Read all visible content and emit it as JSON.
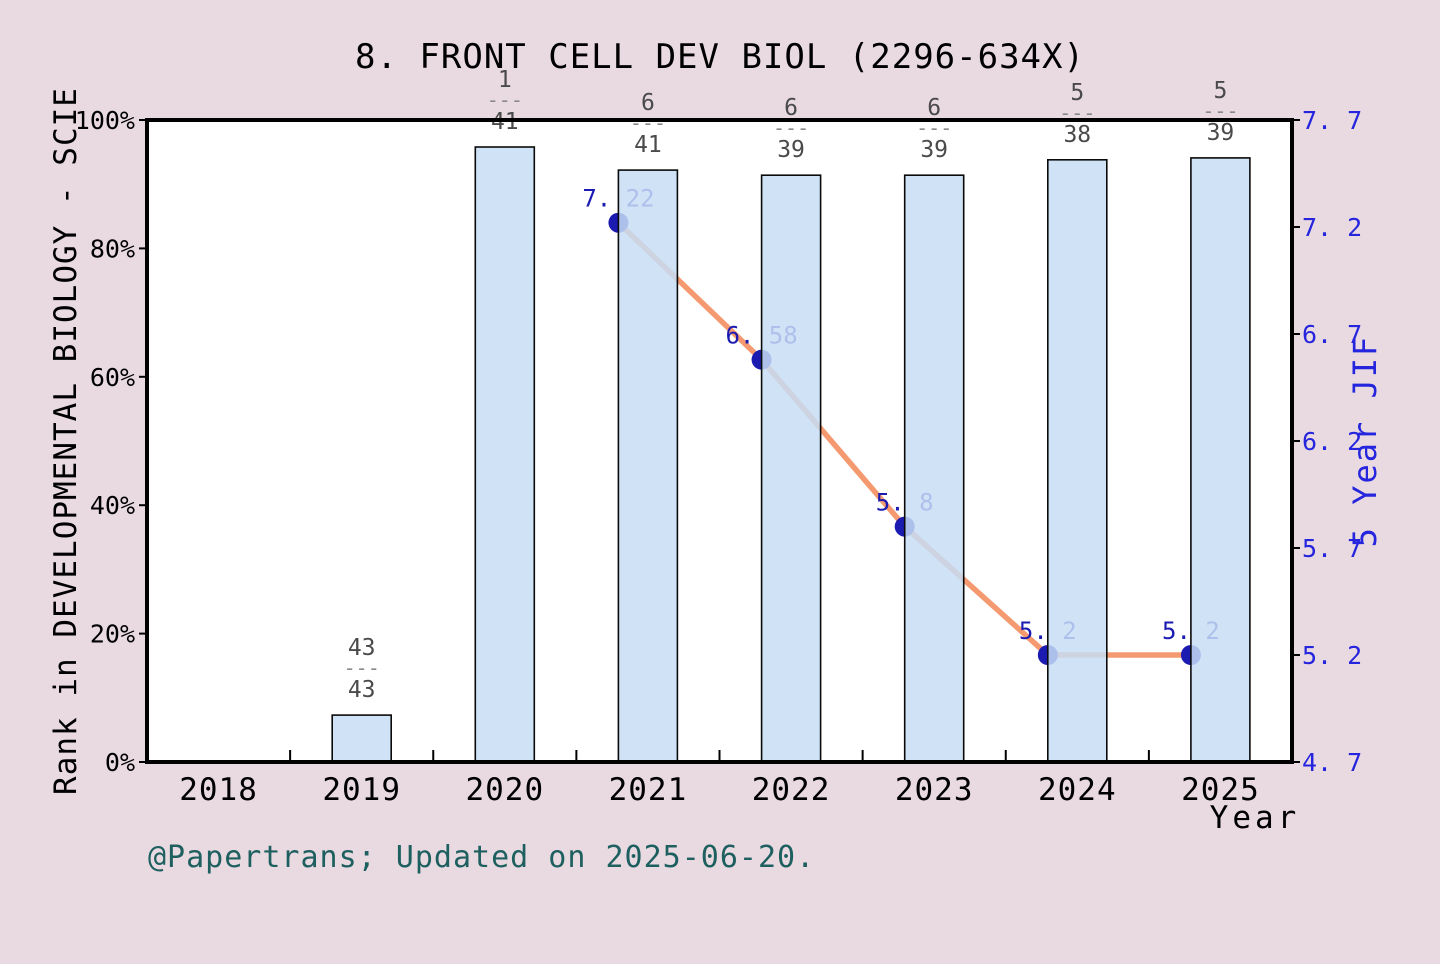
{
  "title": "8.  FRONT CELL DEV BIOL (2296-634X)",
  "footer": "@Papertrans; Updated on 2025-06-20.",
  "colors": {
    "background": "#e9dae2",
    "plot_background": "#ffffff",
    "bar_fill": "#c7ddf4",
    "bar_fill_opacity": 0.85,
    "bar_stroke": "#0a0a0a",
    "line": "#f59a70",
    "point": "#1b1bb2",
    "point_label": "#1b1bb2",
    "right_axis_text": "#2525dd",
    "left_axis_text": "#000000",
    "fraction_text": "#4a4a4a",
    "fraction_dash": "#8a8a8a",
    "footer_text": "#1e5f5f",
    "spine": "#000000"
  },
  "chart_data": {
    "type": "bar+line",
    "title": "8. FRONT CELL DEV BIOL (2296-634X)",
    "categories": [
      "2018",
      "2019",
      "2020",
      "2021",
      "2022",
      "2023",
      "2024",
      "2025"
    ],
    "bars": {
      "series_name": "Rank in DEVELOPMENTAL BIOLOGY - SCIE",
      "unit": "percentile",
      "values_pct": [
        null,
        7.3,
        95.8,
        92.2,
        91.4,
        91.4,
        93.8,
        94.1
      ],
      "rank_fractions": [
        null,
        {
          "num": "43",
          "den": "43"
        },
        {
          "num": "1",
          "den": "41"
        },
        {
          "num": "6",
          "den": "41"
        },
        {
          "num": "6",
          "den": "39"
        },
        {
          "num": "6",
          "den": "39"
        },
        {
          "num": "5",
          "den": "38"
        },
        {
          "num": "5",
          "den": "39"
        }
      ],
      "dash_glyph": "---"
    },
    "line": {
      "series_name": "5 Year JIF",
      "points": [
        {
          "x": "2021",
          "y": 7.22,
          "label": "7. 22"
        },
        {
          "x": "2022",
          "y": 6.58,
          "label": "6. 58"
        },
        {
          "x": "2023",
          "y": 5.8,
          "label": "5. 8"
        },
        {
          "x": "2024",
          "y": 5.2,
          "label": "5. 2"
        },
        {
          "x": "2025",
          "y": 5.2,
          "label": "5. 2"
        }
      ]
    },
    "left_axis": {
      "label": "Rank in DEVELOPMENTAL BIOLOGY - SCIE",
      "tick_labels": [
        "0%",
        "20%",
        "40%",
        "60%",
        "80%",
        "100%"
      ],
      "tick_values": [
        0,
        20,
        40,
        60,
        80,
        100
      ],
      "range": [
        0,
        100
      ]
    },
    "right_axis": {
      "label": "5 Year JIF",
      "tick_labels": [
        "4. 7",
        "5. 2",
        "5. 7",
        "6. 2",
        "6. 7",
        "7. 2",
        "7. 7"
      ],
      "tick_values": [
        4.7,
        5.2,
        5.7,
        6.2,
        6.7,
        7.2,
        7.7
      ],
      "range": [
        4.7,
        7.7
      ]
    },
    "x_axis": {
      "label": "Year",
      "tick_labels": [
        "2018",
        "2019",
        "2020",
        "2021",
        "2022",
        "2023",
        "2024",
        "2025"
      ]
    },
    "legend": "none",
    "grid": false
  }
}
